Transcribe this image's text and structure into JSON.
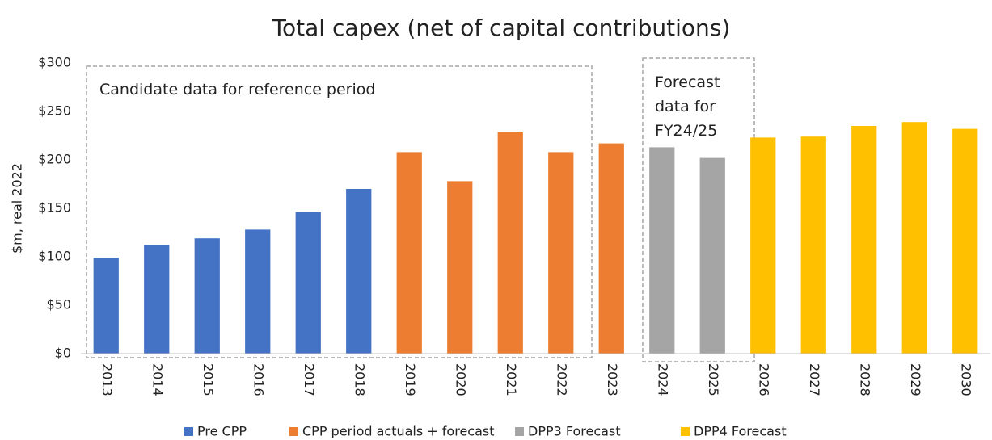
{
  "chart_data": {
    "type": "bar",
    "title": "Total capex (net of capital contributions)",
    "y_label": "$m, real 2022",
    "categories": [
      "2013",
      "2014",
      "2015",
      "2016",
      "2017",
      "2018",
      "2019",
      "2020",
      "2021",
      "2022",
      "2023",
      "2024",
      "2025",
      "2026",
      "2027",
      "2028",
      "2029",
      "2030"
    ],
    "series": [
      {
        "name": "Pre CPP",
        "color": "#4472c4",
        "values": [
          99,
          112,
          119,
          128,
          146,
          170,
          null,
          null,
          null,
          null,
          null,
          null,
          null,
          null,
          null,
          null,
          null,
          null
        ]
      },
      {
        "name": "CPP period actuals + forecast",
        "color": "#ed7d31",
        "values": [
          null,
          null,
          null,
          null,
          null,
          null,
          208,
          178,
          229,
          208,
          217,
          null,
          null,
          null,
          null,
          null,
          null,
          null
        ]
      },
      {
        "name": "DPP3 Forecast",
        "color": "#a5a5a5",
        "values": [
          null,
          null,
          null,
          null,
          null,
          null,
          null,
          null,
          null,
          null,
          null,
          213,
          202,
          null,
          null,
          null,
          null,
          null
        ]
      },
      {
        "name": "DPP4 Forecast",
        "color": "#ffc000",
        "values": [
          null,
          null,
          null,
          null,
          null,
          null,
          null,
          null,
          null,
          null,
          null,
          null,
          null,
          223,
          224,
          235,
          239,
          232
        ]
      }
    ],
    "ylim": [
      0,
      300
    ],
    "yticks": [
      {
        "value": 0,
        "label": "$0"
      },
      {
        "value": 50,
        "label": "$50"
      },
      {
        "value": 100,
        "label": "$100"
      },
      {
        "value": 150,
        "label": "$150"
      },
      {
        "value": 200,
        "label": "$200"
      },
      {
        "value": 250,
        "label": "$250"
      },
      {
        "value": 300,
        "label": "$300"
      }
    ],
    "grid": false,
    "annotations": [
      {
        "lines": [
          "Candidate data for reference period"
        ]
      },
      {
        "lines": [
          "Forecast",
          "data for",
          "FY24/25"
        ]
      }
    ]
  }
}
